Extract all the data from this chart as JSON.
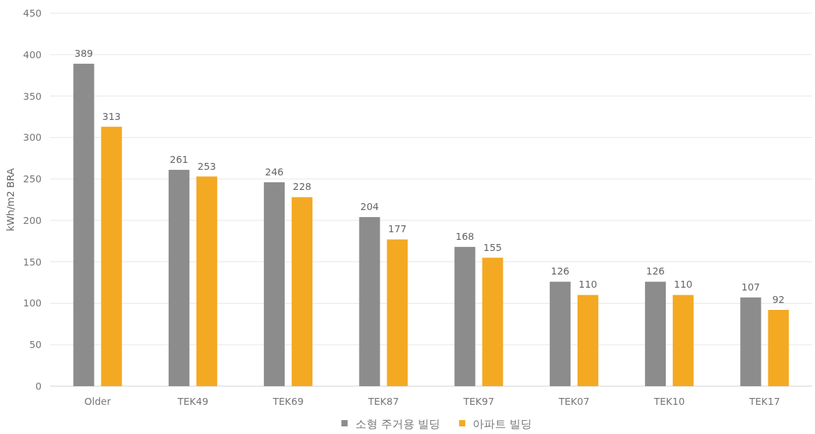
{
  "chart_data": {
    "type": "bar",
    "ylabel": "kWh/m2 BRA",
    "categories": [
      "Older",
      "TEK49",
      "TEK69",
      "TEK87",
      "TEK97",
      "TEK07",
      "TEK10",
      "TEK17"
    ],
    "series": [
      {
        "name": "소형 주거용 빌딩",
        "color": "#8c8c8c",
        "values": [
          389,
          261,
          246,
          204,
          168,
          126,
          126,
          107
        ]
      },
      {
        "name": "아파트 빌딩",
        "color": "#f4a922",
        "values": [
          313,
          253,
          228,
          177,
          155,
          110,
          110,
          92
        ]
      }
    ],
    "ylim": [
      0,
      450
    ],
    "yticks": [
      0,
      50,
      100,
      150,
      200,
      250,
      300,
      350,
      400,
      450
    ],
    "grid": "y",
    "legend": "bottom",
    "data_labels": true
  }
}
